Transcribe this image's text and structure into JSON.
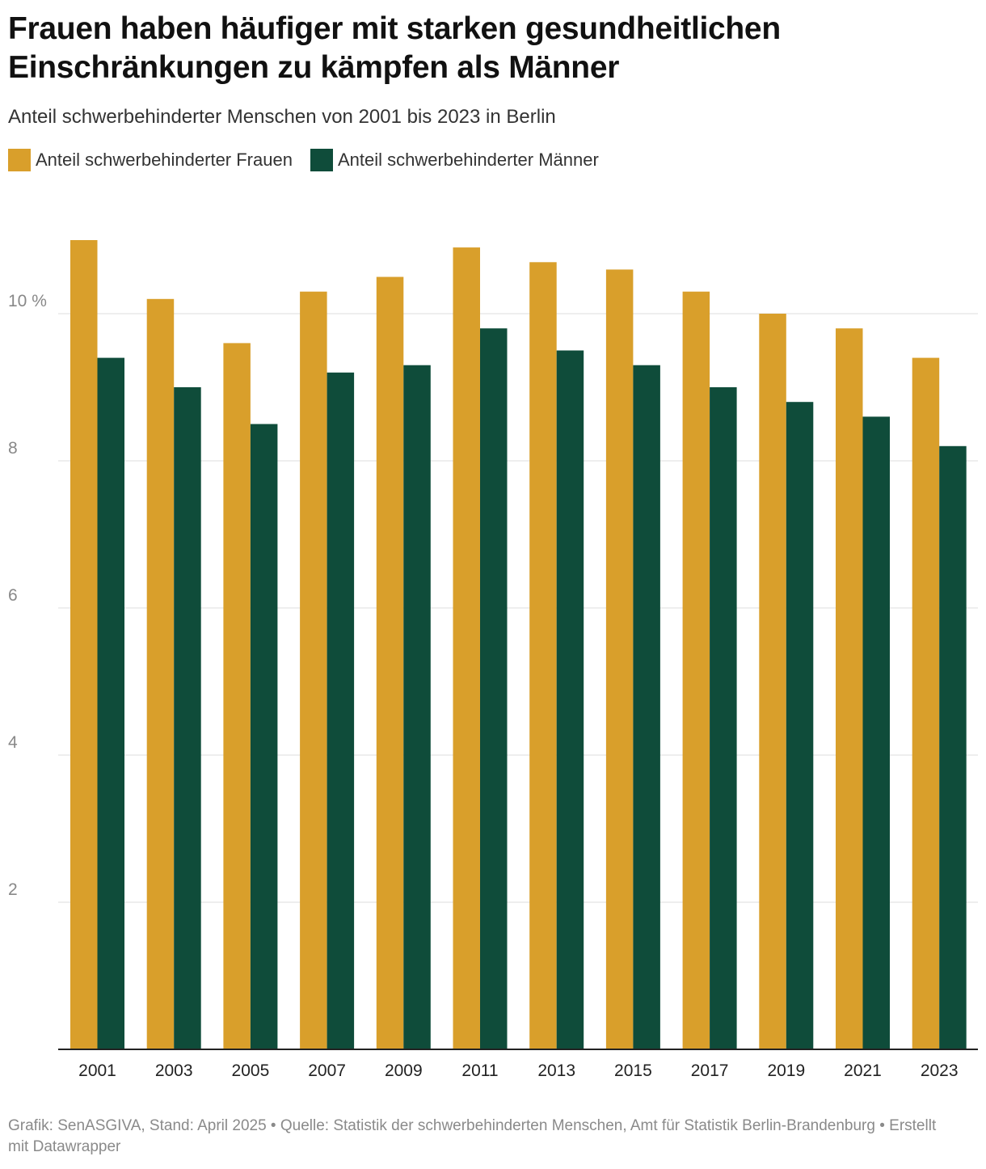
{
  "title": "Frauen haben häufiger mit starken gesundheitlichen Einschränkungen zu kämpfen als Männer",
  "subtitle": "Anteil schwerbehinderter Menschen von 2001 bis 2023 in Berlin",
  "colors": {
    "frauen": "#d99f2b",
    "maenner": "#0f4c3a",
    "grid": "#dddddd",
    "tick": "#888888",
    "axis": "#222222"
  },
  "chart_data": {
    "type": "bar",
    "categories": [
      "2001",
      "2003",
      "2005",
      "2007",
      "2009",
      "2011",
      "2013",
      "2015",
      "2017",
      "2019",
      "2021",
      "2023"
    ],
    "series": [
      {
        "name": "Anteil schwerbehinderter Frauen",
        "values": [
          11.0,
          10.2,
          9.6,
          10.3,
          10.5,
          10.9,
          10.7,
          10.6,
          10.3,
          10.0,
          9.8,
          9.4
        ]
      },
      {
        "name": "Anteil schwerbehinderter Männer",
        "values": [
          9.4,
          9.0,
          8.5,
          9.2,
          9.3,
          9.8,
          9.5,
          9.3,
          9.0,
          8.8,
          8.6,
          8.2
        ]
      }
    ],
    "y_ticks": [
      2,
      4,
      6,
      8,
      10
    ],
    "y_tick_labels": [
      "2",
      "4",
      "6",
      "8",
      "10 %"
    ],
    "ylim": [
      0,
      11
    ],
    "grid": true,
    "legend_position": "top-left"
  },
  "footer": "Grafik: SenASGIVA, Stand: April 2025 • Quelle: Statistik der schwerbehinderten Menschen, Amt für Statistik Berlin-Brandenburg • Erstellt mit Datawrapper"
}
